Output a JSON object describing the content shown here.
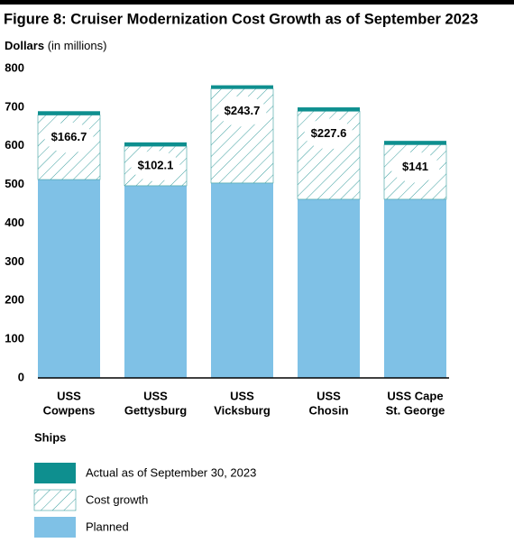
{
  "chart_data": {
    "type": "stacked_bar",
    "title": "Figure 8: Cruiser Modernization Cost Growth as of September 2023",
    "y_label": "Dollars",
    "y_label_unit": "(in millions)",
    "x_label": "Ships",
    "categories": [
      [
        "USS",
        "Cowpens"
      ],
      [
        "USS",
        "Gettysburg"
      ],
      [
        "USS",
        "Vicksburg"
      ],
      [
        "USS",
        "Chosin"
      ],
      [
        "USS Cape",
        "St. George"
      ]
    ],
    "series": [
      {
        "name": "Planned",
        "color": "#7fc1e6",
        "values": [
          513,
          497,
          504,
          462,
          462
        ]
      },
      {
        "name": "Cost growth",
        "color": "#3a9e9e",
        "pattern": "hatch",
        "values": [
          166.7,
          102.1,
          243.7,
          227.6,
          141
        ],
        "value_labels": [
          "$166.7",
          "$102.1",
          "$243.7",
          "$227.6",
          "$141"
        ]
      },
      {
        "name": "Actual as of September 30, 2023",
        "color": "#0e8f8f",
        "values": [
          10,
          10,
          9,
          10,
          10
        ]
      }
    ],
    "ylim": [
      0,
      800
    ],
    "yticks": [
      0,
      100,
      200,
      300,
      400,
      500,
      600,
      700,
      800
    ],
    "grid": false
  }
}
